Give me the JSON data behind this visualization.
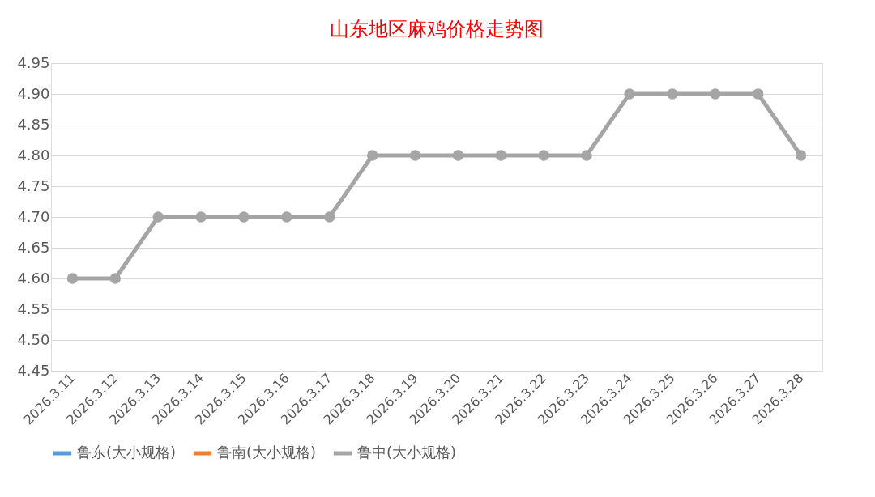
{
  "chart_data": {
    "type": "line",
    "title": "山东地区麻鸡价格走势图",
    "categories": [
      "2026.3.11",
      "2026.3.12",
      "2026.3.13",
      "2026.3.14",
      "2026.3.15",
      "2026.3.16",
      "2026.3.17",
      "2026.3.18",
      "2026.3.19",
      "2026.3.20",
      "2026.3.21",
      "2026.3.22",
      "2026.3.23",
      "2026.3.24",
      "2026.3.25",
      "2026.3.26",
      "2026.3.27",
      "2026.3.28"
    ],
    "series": [
      {
        "name": "鲁东(大小规格)",
        "color": "#5b9bd5",
        "values": [
          null,
          null,
          null,
          null,
          null,
          null,
          null,
          null,
          null,
          null,
          null,
          null,
          null,
          null,
          null,
          null,
          null,
          null
        ]
      },
      {
        "name": "鲁南(大小规格)",
        "color": "#ed7d31",
        "values": [
          null,
          null,
          null,
          null,
          null,
          null,
          null,
          null,
          null,
          null,
          null,
          null,
          null,
          null,
          null,
          null,
          null,
          null
        ]
      },
      {
        "name": "鲁中(大小规格)",
        "color": "#a5a5a5",
        "values": [
          4.6,
          4.6,
          4.7,
          4.7,
          4.7,
          4.7,
          4.7,
          4.8,
          4.8,
          4.8,
          4.8,
          4.8,
          4.8,
          4.9,
          4.9,
          4.9,
          4.9,
          4.8
        ]
      }
    ],
    "ylim": [
      4.45,
      4.95
    ],
    "yticks": [
      4.45,
      {
        "value": 4.5,
        "label": "4.50"
      },
      {
        "value": 4.55,
        "label": "4.55"
      },
      {
        "value": 4.6,
        "label": "4.60"
      },
      4.65,
      {
        "value": 4.7,
        "label": "4.70"
      },
      4.75,
      {
        "value": 4.8,
        "label": "4.80"
      },
      4.85,
      {
        "value": 4.9,
        "label": "4.90"
      },
      4.95
    ],
    "grid": "y",
    "legend": "bottom",
    "marker": "circle",
    "line_style": "solid"
  }
}
